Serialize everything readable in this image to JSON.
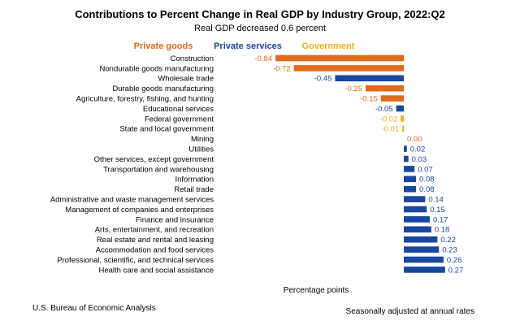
{
  "chart_data": {
    "type": "bar",
    "orientation": "horizontal",
    "title": "Contributions to Percent Change in Real GDP by Industry Group, 2022:Q2",
    "subtitle": "Real GDP decreased 0.6 percent",
    "xlabel": "Percentage points",
    "legend": [
      {
        "name": "Private goods",
        "color": "#E06A1E"
      },
      {
        "name": "Private services",
        "color": "#17479E"
      },
      {
        "name": "Government",
        "color": "#F0AD1E"
      }
    ],
    "categories": [
      "Construction",
      "Nondurable goods manufacturing",
      "Wholesale trade",
      "Durable goods manufacturing",
      "Agriculture, forestry, fishing, and hunting",
      "Educational services",
      "Federal government",
      "State and local government",
      "Mining",
      "Utilities",
      "Other services, except government",
      "Transportation and warehousing",
      "Information",
      "Retail trade",
      "Administrative and waste management services",
      "Management of companies and enterprises",
      "Finance and insurance",
      "Arts, entertainment, and recreation",
      "Real estate and rental and leasing",
      "Accommodation and food services",
      "Professional, scientific, and technical services",
      "Health care and social assistance"
    ],
    "values": [
      -0.84,
      -0.72,
      -0.45,
      -0.25,
      -0.15,
      -0.05,
      -0.02,
      -0.01,
      0.0,
      0.02,
      0.03,
      0.07,
      0.08,
      0.08,
      0.14,
      0.15,
      0.17,
      0.18,
      0.22,
      0.23,
      0.26,
      0.27
    ],
    "value_labels": [
      "-0.84",
      "-0.72",
      "-0.45",
      "-0.25",
      "-0.15",
      "-0.05",
      "-0.02",
      "-0.01",
      "0.00",
      "0.02",
      "0.03",
      "0.07",
      "0.08",
      "0.08",
      "0.14",
      "0.15",
      "0.17",
      "0.18",
      "0.22",
      "0.23",
      "0.26",
      "0.27"
    ],
    "groups": [
      "Private goods",
      "Private goods",
      "Private services",
      "Private goods",
      "Private goods",
      "Private services",
      "Government",
      "Government",
      "Private goods",
      "Private services",
      "Private services",
      "Private services",
      "Private services",
      "Private services",
      "Private services",
      "Private services",
      "Private services",
      "Private services",
      "Private services",
      "Private services",
      "Private services",
      "Private services"
    ],
    "xlim": [
      -0.9,
      0.3
    ]
  },
  "footer": {
    "source": "U.S. Bureau of Economic Analysis",
    "note": "Seasonally adjusted at annual rates"
  }
}
